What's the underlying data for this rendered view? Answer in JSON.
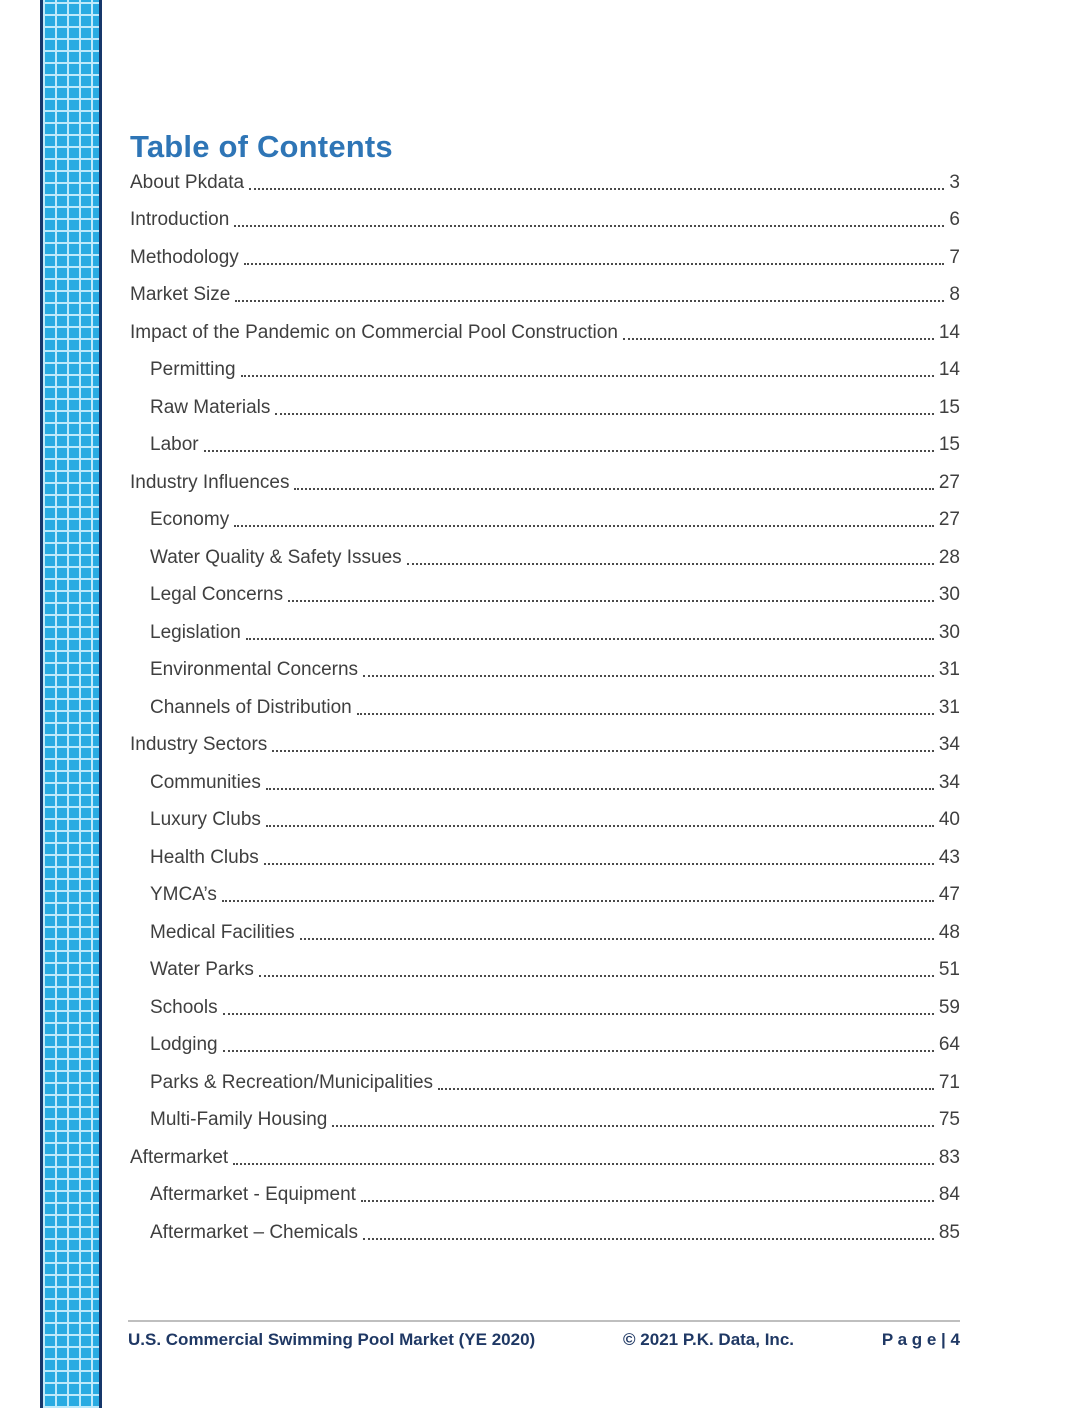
{
  "page": {
    "title": "Table of Contents",
    "colors": {
      "title_blue": "#2E75B6",
      "body_text": "#3F3F3F",
      "footer_navy": "#1F3864",
      "footer_rule_gray": "#BFBFBF",
      "tile_blue": "#29ABE2",
      "tile_grout": "#BFE9FA",
      "tile_edge_navy": "#16376B"
    }
  },
  "toc": {
    "entries": [
      {
        "label": "About Pkdata",
        "page": "3",
        "level": 0
      },
      {
        "label": "Introduction",
        "page": "6",
        "level": 0
      },
      {
        "label": "Methodology",
        "page": "7",
        "level": 0
      },
      {
        "label": "Market Size",
        "page": "8",
        "level": 0
      },
      {
        "label": "Impact of the Pandemic on Commercial Pool Construction",
        "page": "14",
        "level": 0
      },
      {
        "label": "Permitting",
        "page": "14",
        "level": 1
      },
      {
        "label": "Raw Materials",
        "page": "15",
        "level": 1
      },
      {
        "label": "Labor",
        "page": "15",
        "level": 1
      },
      {
        "label": "Industry Influences",
        "page": "27",
        "level": 0
      },
      {
        "label": "Economy",
        "page": "27",
        "level": 1
      },
      {
        "label": "Water Quality & Safety Issues",
        "page": "28",
        "level": 1
      },
      {
        "label": "Legal Concerns",
        "page": "30",
        "level": 1
      },
      {
        "label": "Legislation",
        "page": "30",
        "level": 1
      },
      {
        "label": "Environmental Concerns",
        "page": "31",
        "level": 1
      },
      {
        "label": "Channels of Distribution",
        "page": "31",
        "level": 1
      },
      {
        "label": "Industry Sectors",
        "page": "34",
        "level": 0
      },
      {
        "label": "Communities",
        "page": "34",
        "level": 1
      },
      {
        "label": "Luxury Clubs",
        "page": "40",
        "level": 1
      },
      {
        "label": "Health Clubs",
        "page": "43",
        "level": 1
      },
      {
        "label": "YMCA’s",
        "page": "47",
        "level": 1
      },
      {
        "label": "Medical Facilities",
        "page": "48",
        "level": 1
      },
      {
        "label": "Water Parks",
        "page": "51",
        "level": 1
      },
      {
        "label": "Schools",
        "page": "59",
        "level": 1
      },
      {
        "label": "Lodging",
        "page": "64",
        "level": 1
      },
      {
        "label": "Parks & Recreation/Municipalities",
        "page": "71",
        "level": 1
      },
      {
        "label": "Multi-Family Housing",
        "page": "75",
        "level": 1
      },
      {
        "label": "Aftermarket",
        "page": "83",
        "level": 0
      },
      {
        "label": "Aftermarket - Equipment",
        "page": "84",
        "level": 1
      },
      {
        "label": "Aftermarket – Chemicals",
        "page": "85",
        "level": 1
      }
    ]
  },
  "footer": {
    "left": "U.S. Commercial Swimming Pool Market (YE 2020)",
    "center": "© 2021 P.K. Data, Inc.",
    "right": "P a g e | 4"
  }
}
